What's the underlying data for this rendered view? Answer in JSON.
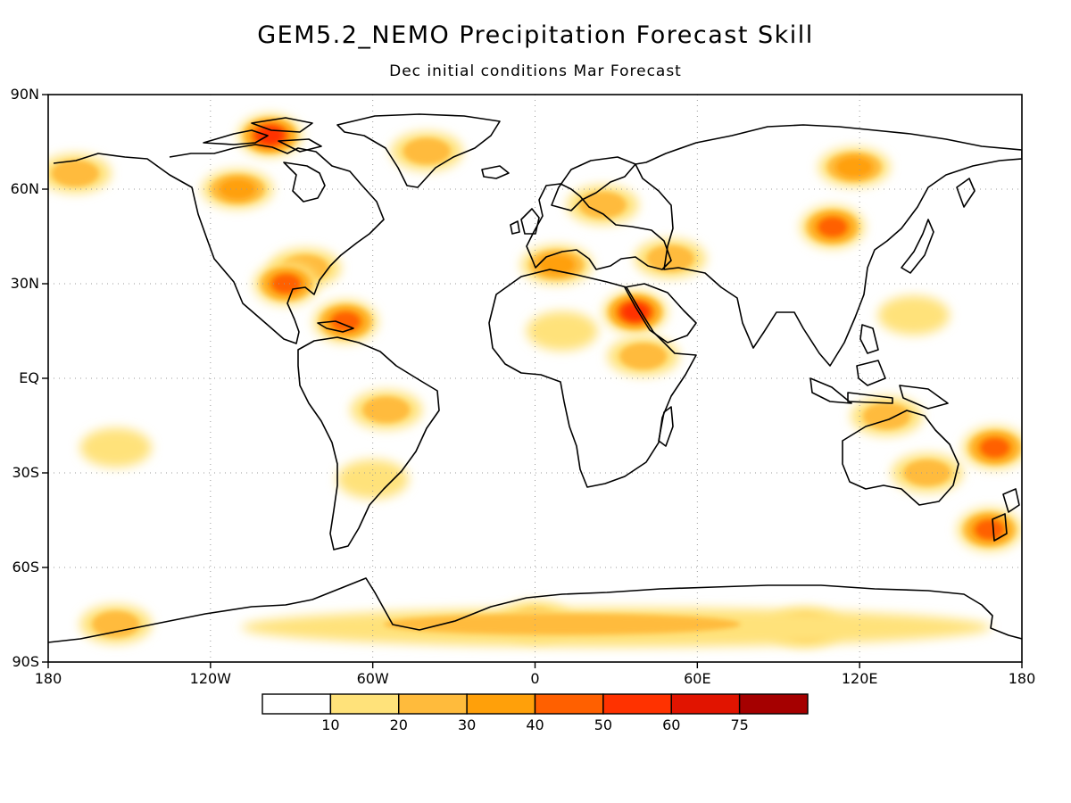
{
  "title": "GEM5.2_NEMO Precipitation Forecast Skill",
  "subtitle": "Dec initial conditions  Mar Forecast",
  "y_axis": {
    "ticks": [
      {
        "label": "90N",
        "lat": 90
      },
      {
        "label": "60N",
        "lat": 60
      },
      {
        "label": "30N",
        "lat": 30
      },
      {
        "label": "EQ",
        "lat": 0
      },
      {
        "label": "30S",
        "lat": -30
      },
      {
        "label": "60S",
        "lat": -60
      },
      {
        "label": "90S",
        "lat": -90
      }
    ]
  },
  "x_axis": {
    "ticks": [
      {
        "label": "180",
        "lon": -180
      },
      {
        "label": "120W",
        "lon": -120
      },
      {
        "label": "60W",
        "lon": -60
      },
      {
        "label": "0",
        "lon": 0
      },
      {
        "label": "60E",
        "lon": 60
      },
      {
        "label": "120E",
        "lon": 120
      },
      {
        "label": "180",
        "lon": 180
      }
    ]
  },
  "colorbar": {
    "colors": [
      "#ffffff",
      "#ffe27a",
      "#ffbb3c",
      "#ffa00a",
      "#ff6000",
      "#ff3200",
      "#e11400",
      "#a50000"
    ],
    "labels": [
      "10",
      "20",
      "30",
      "40",
      "50",
      "60",
      "75"
    ]
  },
  "chart_data": {
    "type": "heatmap",
    "projection": "cylindrical equidistant",
    "lon_range": [
      -180,
      180
    ],
    "lat_range": [
      -90,
      90
    ],
    "gridlines": "dotted",
    "coastlines": true,
    "levels": [
      10,
      20,
      30,
      40,
      50,
      60,
      75
    ],
    "skill_regions": [
      {
        "lon": 37,
        "lat": 21,
        "level": 5
      },
      {
        "lon": -98,
        "lat": 77,
        "level": 5
      },
      {
        "lon": -70,
        "lat": 18,
        "level": 4
      },
      {
        "lon": -92,
        "lat": 30,
        "level": 4
      },
      {
        "lon": 170,
        "lat": -22,
        "level": 4
      },
      {
        "lon": 168,
        "lat": -48,
        "level": 4
      },
      {
        "lon": 110,
        "lat": 48,
        "level": 4
      },
      {
        "lon": 8,
        "lat": 36,
        "level": 3
      },
      {
        "lon": -110,
        "lat": 60,
        "level": 3
      },
      {
        "lon": 118,
        "lat": 67,
        "level": 3
      },
      {
        "lon": 0,
        "lat": -77,
        "level": 2
      },
      {
        "lon": 100,
        "lat": -79,
        "level": 2
      },
      {
        "lon": -155,
        "lat": -78,
        "level": 2
      },
      {
        "lon": 145,
        "lat": -30,
        "level": 2
      },
      {
        "lon": -40,
        "lat": 72,
        "level": 2
      },
      {
        "lon": 50,
        "lat": 38,
        "level": 2
      },
      {
        "lon": -170,
        "lat": 65,
        "level": 2
      },
      {
        "lon": 25,
        "lat": 55,
        "level": 2
      },
      {
        "lon": -85,
        "lat": 35,
        "level": 2
      },
      {
        "lon": 40,
        "lat": 7,
        "level": 2
      },
      {
        "lon": -55,
        "lat": -10,
        "level": 2
      },
      {
        "lon": 130,
        "lat": -12,
        "level": 2
      },
      {
        "lon": 140,
        "lat": 20,
        "level": 1
      },
      {
        "lon": -155,
        "lat": -22,
        "level": 1
      },
      {
        "lon": -60,
        "lat": -32,
        "level": 1
      },
      {
        "lon": 10,
        "lat": 15,
        "level": 1
      }
    ]
  }
}
